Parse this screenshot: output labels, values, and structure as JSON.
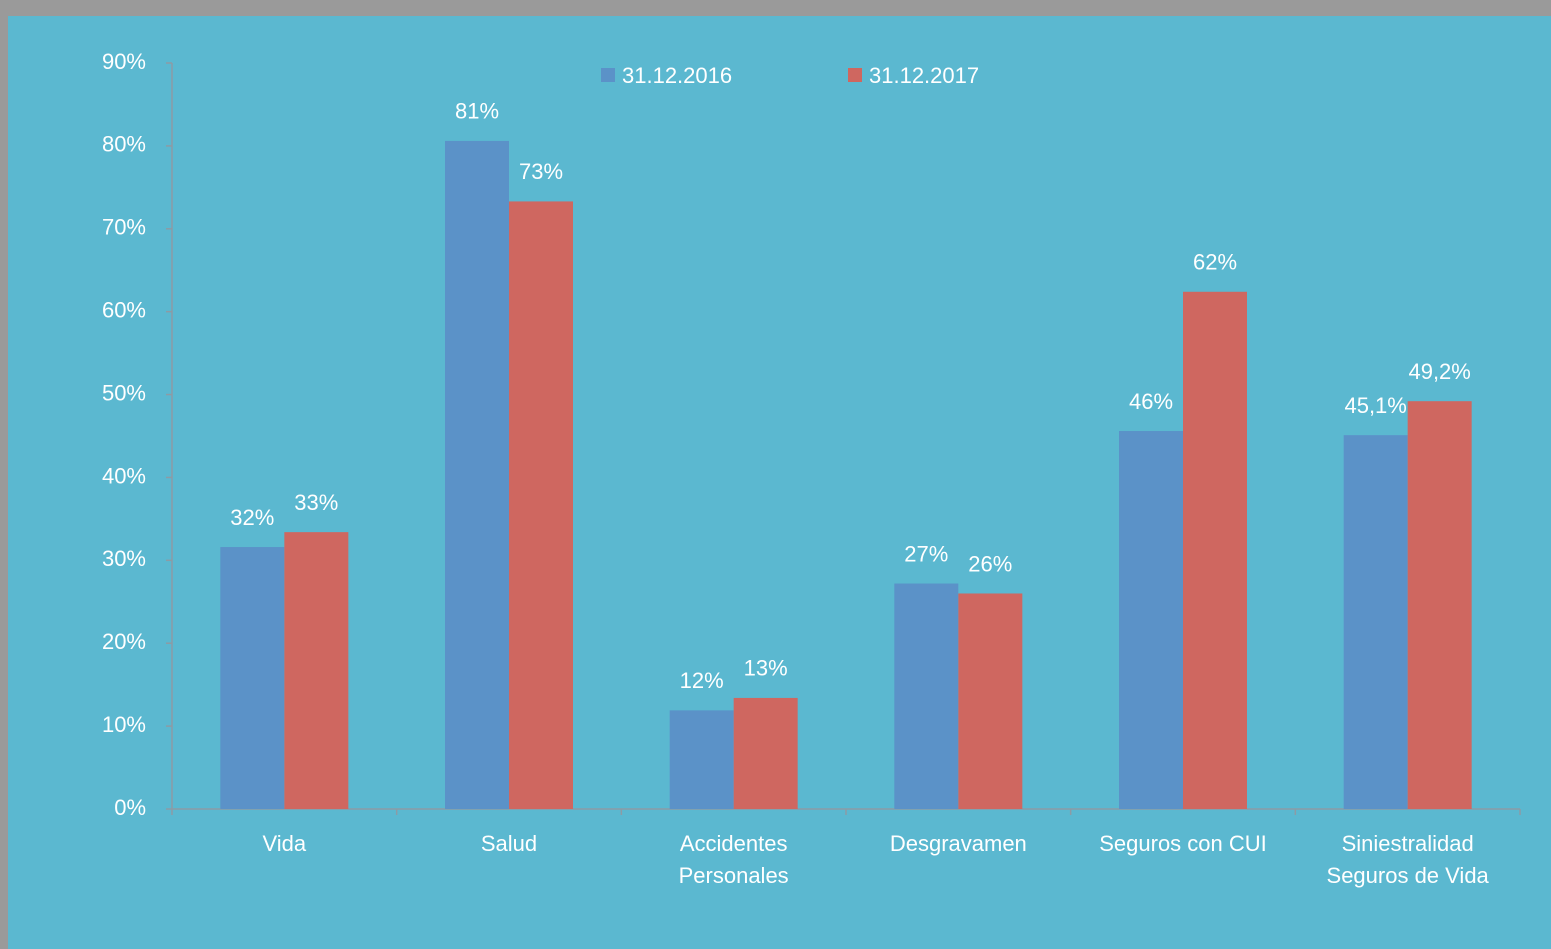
{
  "chart_data": {
    "type": "bar",
    "categories": [
      "Vida",
      "Salud",
      "Accidentes Personales",
      "Desgravamen",
      "Seguros con CUI",
      "Siniestralidad Seguros de Vida"
    ],
    "series": [
      {
        "name": "31.12.2016",
        "color": "#5b92c8",
        "values": [
          31.6,
          80.6,
          11.9,
          27.2,
          45.6,
          45.1
        ],
        "value_labels": [
          "32%",
          "81%",
          "12%",
          "27%",
          "46%",
          "45,1%"
        ]
      },
      {
        "name": "31.12.2017",
        "color": "#cf6760",
        "values": [
          33.4,
          73.3,
          13.4,
          26.0,
          62.4,
          49.2
        ],
        "value_labels": [
          "33%",
          "73%",
          "13%",
          "26%",
          "62%",
          "49,2%"
        ]
      }
    ],
    "ylim": [
      0,
      90
    ],
    "yticks": [
      {
        "value": 0,
        "label": "0%"
      },
      {
        "value": 10,
        "label": "10%"
      },
      {
        "value": 20,
        "label": "20%"
      },
      {
        "value": 30,
        "label": "30%"
      },
      {
        "value": 40,
        "label": "40%"
      },
      {
        "value": 50,
        "label": "50%"
      },
      {
        "value": 60,
        "label": "60%"
      },
      {
        "value": 70,
        "label": "70%"
      },
      {
        "value": 80,
        "label": "80%"
      },
      {
        "value": 90,
        "label": "90%"
      }
    ],
    "grid": false,
    "legend": "top"
  }
}
